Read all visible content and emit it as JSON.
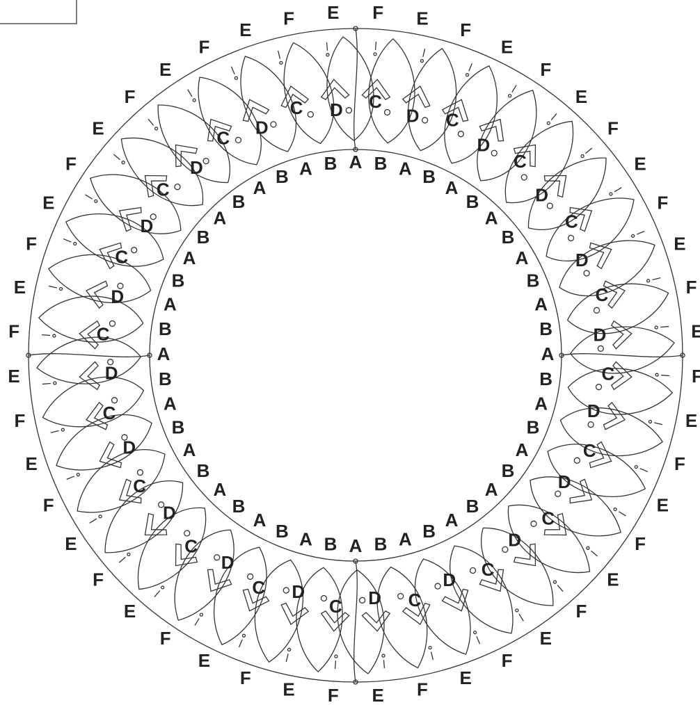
{
  "outer_labels": [
    "E",
    "F",
    "E",
    "F",
    "E",
    "F",
    "E",
    "F",
    "E",
    "F",
    "E",
    "F",
    "E",
    "F",
    "E",
    "F",
    "E",
    "F",
    "E",
    "F",
    "E",
    "F",
    "E",
    "F",
    "E",
    "F",
    "E",
    "F",
    "E",
    "F",
    "E",
    "F",
    "E",
    "F",
    "E",
    "F",
    "E",
    "F",
    "E",
    "F",
    "E",
    "F",
    "E",
    "F",
    "E",
    "F",
    "E",
    "F"
  ],
  "inner_labels": [
    "A",
    "B",
    "A",
    "B",
    "A",
    "B",
    "A",
    "B",
    "A",
    "B",
    "A",
    "B",
    "A",
    "B",
    "A",
    "B",
    "A",
    "B",
    "A",
    "B",
    "A",
    "B",
    "A",
    "B",
    "A",
    "B",
    "A",
    "B",
    "A",
    "B",
    "A",
    "B",
    "A",
    "B",
    "A",
    "B",
    "A",
    "B",
    "A",
    "B",
    "A",
    "B",
    "A",
    "B",
    "A",
    "B",
    "A",
    "B"
  ],
  "petal_labels": [
    "D",
    "C",
    "D",
    "C",
    "D",
    "C",
    "D",
    "C",
    "D",
    "C",
    "D",
    "C",
    "D",
    "C",
    "D",
    "C",
    "D",
    "C",
    "D",
    "C",
    "D",
    "C",
    "D",
    "C",
    "D",
    "C",
    "D",
    "C",
    "D",
    "C",
    "D",
    "C",
    "D",
    "C",
    "D",
    "C",
    "D",
    "C",
    "D",
    "C"
  ]
}
